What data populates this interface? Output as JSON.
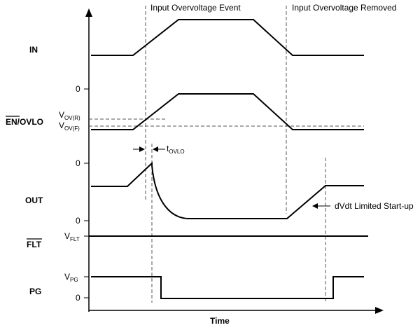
{
  "events": {
    "overvoltage": "Input Overvoltage Event",
    "removed": "Input Overvoltage Removed"
  },
  "signals": {
    "in": "IN",
    "en_ovlo": {
      "bar_part": "EN",
      "rest": "/OVLO"
    },
    "out": "OUT",
    "flt": "FLT",
    "pg": "PG"
  },
  "levels": {
    "zero": "0",
    "vov_r": {
      "main": "V",
      "sub": "OV(R)"
    },
    "vov_f": {
      "main": "V",
      "sub": "OV(F)"
    },
    "vflt": {
      "main": "V",
      "sub": "FLT"
    },
    "vpg": {
      "main": "V",
      "sub": "PG"
    }
  },
  "annotations": {
    "tovlo": {
      "main": "t",
      "sub": "OVLO"
    },
    "dvdt": "dVdt Limited Start-up"
  },
  "axis": {
    "x_label": "Time"
  }
}
